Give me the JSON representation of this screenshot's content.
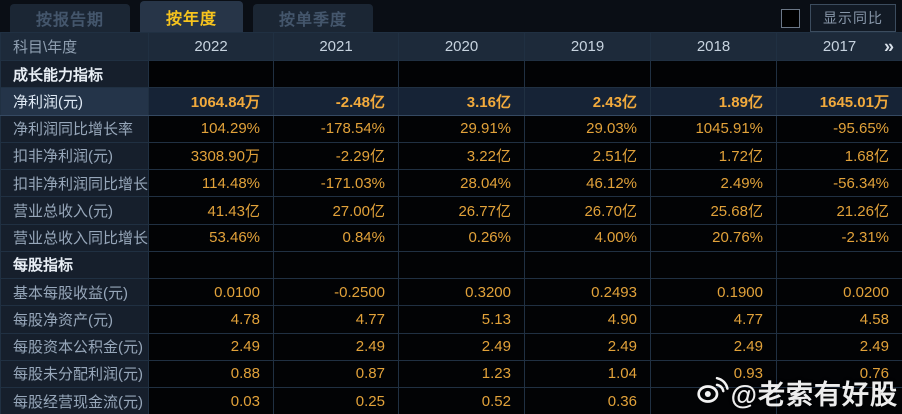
{
  "tabs": [
    {
      "label": "按报告期",
      "active": false
    },
    {
      "label": "按年度",
      "active": true
    },
    {
      "label": "按单季度",
      "active": false
    }
  ],
  "controls": {
    "compare_label": "显示同比",
    "checkbox_checked": false
  },
  "table": {
    "corner_label": "科目\\年度",
    "years": [
      "2022",
      "2021",
      "2020",
      "2019",
      "2018",
      "2017"
    ],
    "more_icon": "»",
    "rows": [
      {
        "label": "成长能力指标",
        "type": "section",
        "values": [
          "",
          "",
          "",
          "",
          "",
          ""
        ]
      },
      {
        "label": "净利润(元)",
        "type": "highlight",
        "values": [
          "1064.84万",
          "-2.48亿",
          "3.16亿",
          "2.43亿",
          "1.89亿",
          "1645.01万"
        ]
      },
      {
        "label": "净利润同比增长率",
        "type": "normal",
        "values": [
          "104.29%",
          "-178.54%",
          "29.91%",
          "29.03%",
          "1045.91%",
          "-95.65%"
        ]
      },
      {
        "label": "扣非净利润(元)",
        "type": "normal",
        "values": [
          "3308.90万",
          "-2.29亿",
          "3.22亿",
          "2.51亿",
          "1.72亿",
          "1.68亿"
        ]
      },
      {
        "label": "扣非净利润同比增长率",
        "type": "normal",
        "values": [
          "114.48%",
          "-171.03%",
          "28.04%",
          "46.12%",
          "2.49%",
          "-56.34%"
        ]
      },
      {
        "label": "营业总收入(元)",
        "type": "normal",
        "values": [
          "41.43亿",
          "27.00亿",
          "26.77亿",
          "26.70亿",
          "25.68亿",
          "21.26亿"
        ]
      },
      {
        "label": "营业总收入同比增长率",
        "type": "normal",
        "values": [
          "53.46%",
          "0.84%",
          "0.26%",
          "4.00%",
          "20.76%",
          "-2.31%"
        ]
      },
      {
        "label": "每股指标",
        "type": "section",
        "values": [
          "",
          "",
          "",
          "",
          "",
          ""
        ]
      },
      {
        "label": "基本每股收益(元)",
        "type": "normal",
        "values": [
          "0.0100",
          "-0.2500",
          "0.3200",
          "0.2493",
          "0.1900",
          "0.0200"
        ]
      },
      {
        "label": "每股净资产(元)",
        "type": "normal",
        "values": [
          "4.78",
          "4.77",
          "5.13",
          "4.90",
          "4.77",
          "4.58"
        ]
      },
      {
        "label": "每股资本公积金(元)",
        "type": "normal",
        "values": [
          "2.49",
          "2.49",
          "2.49",
          "2.49",
          "2.49",
          "2.49"
        ]
      },
      {
        "label": "每股未分配利润(元)",
        "type": "normal",
        "values": [
          "0.88",
          "0.87",
          "1.23",
          "1.04",
          "0.93",
          "0.76"
        ]
      },
      {
        "label": "每股经营现金流(元)",
        "type": "normal",
        "values": [
          "0.03",
          "0.25",
          "0.52",
          "0.36",
          "",
          ""
        ]
      }
    ]
  },
  "watermark": {
    "text": "@老索有好股",
    "icon": "weibo-logo"
  },
  "colors": {
    "accent_gold": "#e2a23a",
    "tab_active_text": "#f7c41d",
    "header_bg": "#1d2a3a",
    "highlight_row_bg": "#162336",
    "label_col_bg": "#161f2c",
    "cell_bg": "#020305",
    "border": "#203042"
  }
}
